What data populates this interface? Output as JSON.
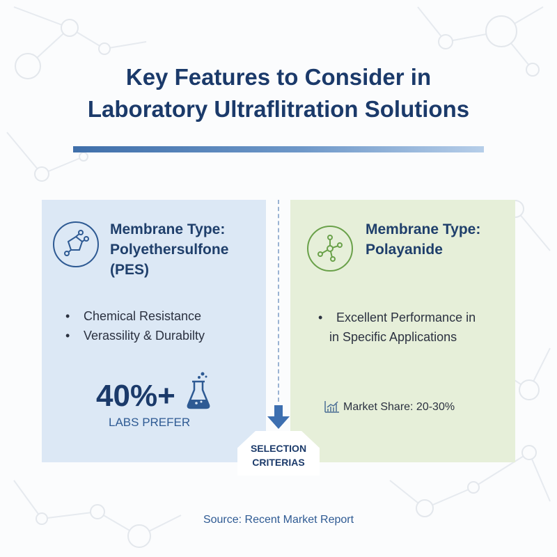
{
  "title": {
    "line1": "Key Features to Consider in",
    "line2": "Laboratory Ultraflitration Solutions"
  },
  "left_panel": {
    "icon": "molecule-ring-icon",
    "heading": [
      "Membrane Type:",
      "Polyethersulfone",
      "(PES)"
    ],
    "bullets": [
      "Chemical Resistance",
      "Verassility & Durabilty"
    ],
    "stat": {
      "value": "40%+",
      "label": "LABS PREFER",
      "icon": "flask-icon"
    }
  },
  "right_panel": {
    "icon": "molecule-network-icon",
    "heading": [
      "Membrane Type:",
      "Polayanide"
    ],
    "bullets": [
      "Excellent Performance in",
      "in Specific Applications"
    ],
    "market": {
      "icon": "bar-chart-icon",
      "text": "Market Share: 20-30%"
    }
  },
  "center": {
    "icon": "arrow-down-icon",
    "label": [
      "SELECTION",
      "CRITERIAS"
    ]
  },
  "source": "Source: Recent Market Report",
  "colors": {
    "title": "#1b3a6a",
    "left_panel_bg": "#dce8f5",
    "right_panel_bg": "#e6efd9",
    "left_accent": "#2e5a93",
    "right_accent": "#6aa14a"
  }
}
